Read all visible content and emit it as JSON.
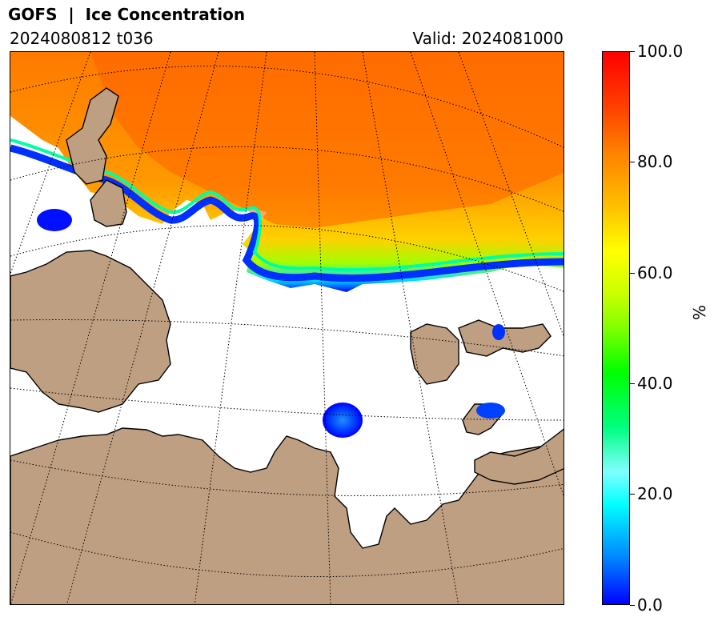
{
  "header": {
    "title": "GOFS  |  Ice Concentration",
    "run": "2024080812 t036",
    "valid": "Valid: 2024081000"
  },
  "colorbar": {
    "unit": "%",
    "ticks": [
      "0.0",
      "20.0",
      "40.0",
      "60.0",
      "80.0",
      "100.0"
    ],
    "min": 0,
    "max": 100
  },
  "colors": {
    "land": "#bf9f82",
    "ocean": "#ffffff",
    "ice_low": "#0000ff",
    "ice_mid": "#00ff00",
    "ice_high": "#ff6a00"
  }
}
